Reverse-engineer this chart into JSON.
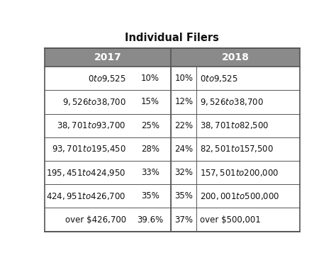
{
  "title": "Individual Filers",
  "header_2017": "2017",
  "header_2018": "2018",
  "header_bg_color": "#8a8a8a",
  "header_text_color": "#ffffff",
  "row_bg_color": "#ffffff",
  "border_color": "#555555",
  "rows": [
    {
      "range_2017": "$0 to $9,525",
      "rate_2017": "10%",
      "rate_2018": "10%",
      "range_2018": "$0 to $9,525"
    },
    {
      "range_2017": "$9,526 to $38,700",
      "rate_2017": "15%",
      "rate_2018": "12%",
      "range_2018": "$9,526 to $38,700"
    },
    {
      "range_2017": "$38,701 to $93,700",
      "rate_2017": "25%",
      "rate_2018": "22%",
      "range_2018": "$38,701 to $82,500"
    },
    {
      "range_2017": "$93,701 to $195,450",
      "rate_2017": "28%",
      "rate_2018": "24%",
      "range_2018": "$82,501 to $157,500"
    },
    {
      "range_2017": "$195,451 to $424,950",
      "rate_2017": "33%",
      "rate_2018": "32%",
      "range_2018": "$157,501 to $200,000"
    },
    {
      "range_2017": "$424,951 to $426,700",
      "rate_2017": "35%",
      "rate_2018": "35%",
      "range_2018": "$200,001 to $500,000"
    },
    {
      "range_2017": "over $426,700",
      "rate_2017": "39.6%",
      "rate_2018": "37%",
      "range_2018": "over $500,001"
    }
  ],
  "title_fontsize": 10.5,
  "header_fontsize": 10,
  "cell_fontsize": 8.5,
  "figsize": [
    4.74,
    3.67
  ],
  "dpi": 100
}
